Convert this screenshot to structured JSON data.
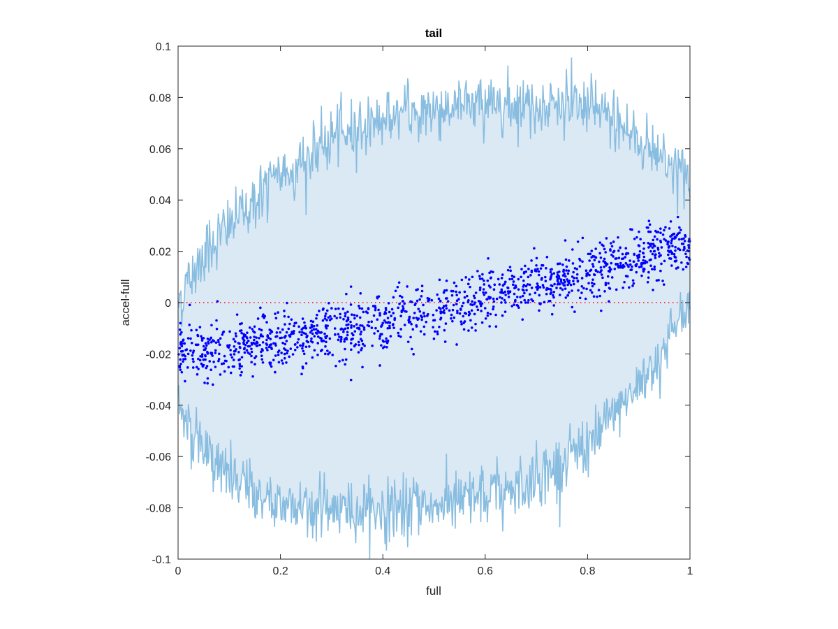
{
  "chart_data": {
    "type": "scatter",
    "title": "tail",
    "xlabel": "full",
    "ylabel": "accel-full",
    "xlim": [
      0,
      1
    ],
    "ylim": [
      -0.1,
      0.1
    ],
    "xticks": [
      0,
      0.2,
      0.4,
      0.6,
      0.8,
      1
    ],
    "xtick_labels": [
      "0",
      "0.2",
      "0.4",
      "0.6",
      "0.8",
      "1"
    ],
    "yticks": [
      -0.1,
      -0.08,
      -0.06,
      -0.04,
      -0.02,
      0,
      0.02,
      0.04,
      0.06,
      0.08,
      0.1
    ],
    "ytick_labels": [
      "-0.1",
      "-0.08",
      "-0.06",
      "-0.04",
      "-0.02",
      "0",
      "0.02",
      "0.04",
      "0.06",
      "0.08",
      "0.1"
    ],
    "grid": false,
    "reference_line": {
      "y": 0,
      "style": "dotted",
      "color": "#ff0000"
    },
    "band": {
      "color_line": "#88bde0",
      "color_fill": "#dbe9f5",
      "upper": {
        "x": [
          0,
          0.05,
          0.1,
          0.15,
          0.2,
          0.25,
          0.3,
          0.35,
          0.4,
          0.45,
          0.5,
          0.55,
          0.6,
          0.65,
          0.7,
          0.75,
          0.8,
          0.85,
          0.9,
          0.95,
          1.0
        ],
        "y": [
          0.0,
          0.02,
          0.03,
          0.04,
          0.05,
          0.055,
          0.064,
          0.068,
          0.072,
          0.074,
          0.075,
          0.077,
          0.078,
          0.078,
          0.077,
          0.077,
          0.076,
          0.072,
          0.063,
          0.057,
          0.047
        ]
      },
      "lower": {
        "x": [
          0,
          0.05,
          0.1,
          0.15,
          0.2,
          0.25,
          0.3,
          0.35,
          0.4,
          0.45,
          0.5,
          0.55,
          0.6,
          0.65,
          0.7,
          0.75,
          0.8,
          0.85,
          0.9,
          0.95,
          1.0
        ],
        "y": [
          -0.04,
          -0.058,
          -0.068,
          -0.075,
          -0.078,
          -0.079,
          -0.08,
          -0.081,
          -0.081,
          -0.08,
          -0.079,
          -0.078,
          -0.076,
          -0.073,
          -0.068,
          -0.063,
          -0.055,
          -0.045,
          -0.032,
          -0.018,
          0.0
        ]
      }
    },
    "series": [
      {
        "type": "scatter",
        "color": "#0000ff",
        "trend": {
          "x": [
            0,
            0.1,
            0.2,
            0.3,
            0.4,
            0.5,
            0.6,
            0.7,
            0.8,
            0.9,
            1.0
          ],
          "y": [
            -0.019,
            -0.018,
            -0.015,
            -0.011,
            -0.007,
            -0.003,
            0.002,
            0.007,
            0.012,
            0.017,
            0.023
          ]
        },
        "x": [
          0.02,
          0.05,
          0.08,
          0.12,
          0.15,
          0.18,
          0.22,
          0.25,
          0.28,
          0.31,
          0.34,
          0.37,
          0.4,
          0.43,
          0.46,
          0.49,
          0.52,
          0.55,
          0.58,
          0.61,
          0.64,
          0.67,
          0.7,
          0.73,
          0.76,
          0.79,
          0.82,
          0.85,
          0.88,
          0.91,
          0.94,
          0.97,
          0.99,
          0.07,
          0.14,
          0.21,
          0.29,
          0.36,
          0.44,
          0.51,
          0.59,
          0.66,
          0.74,
          0.81,
          0.89,
          0.96,
          0.03,
          0.11,
          0.19,
          0.26,
          0.33,
          0.41,
          0.48,
          0.56,
          0.63,
          0.71,
          0.78,
          0.86,
          0.93
        ],
        "y": [
          -0.02,
          -0.017,
          -0.022,
          -0.016,
          -0.024,
          -0.012,
          -0.018,
          -0.01,
          -0.014,
          -0.006,
          -0.012,
          -0.004,
          -0.008,
          -0.002,
          -0.006,
          0.001,
          -0.004,
          0.004,
          0.0,
          0.006,
          0.003,
          0.01,
          0.006,
          0.013,
          0.009,
          0.016,
          0.012,
          0.018,
          0.014,
          0.021,
          0.018,
          0.025,
          0.024,
          -0.015,
          -0.02,
          -0.013,
          -0.01,
          -0.009,
          -0.003,
          -0.002,
          0.005,
          0.006,
          0.01,
          0.015,
          0.016,
          0.022,
          -0.023,
          -0.019,
          -0.016,
          -0.015,
          -0.007,
          -0.006,
          -0.004,
          0.002,
          0.004,
          0.009,
          0.011,
          0.014,
          0.02
        ]
      }
    ]
  }
}
